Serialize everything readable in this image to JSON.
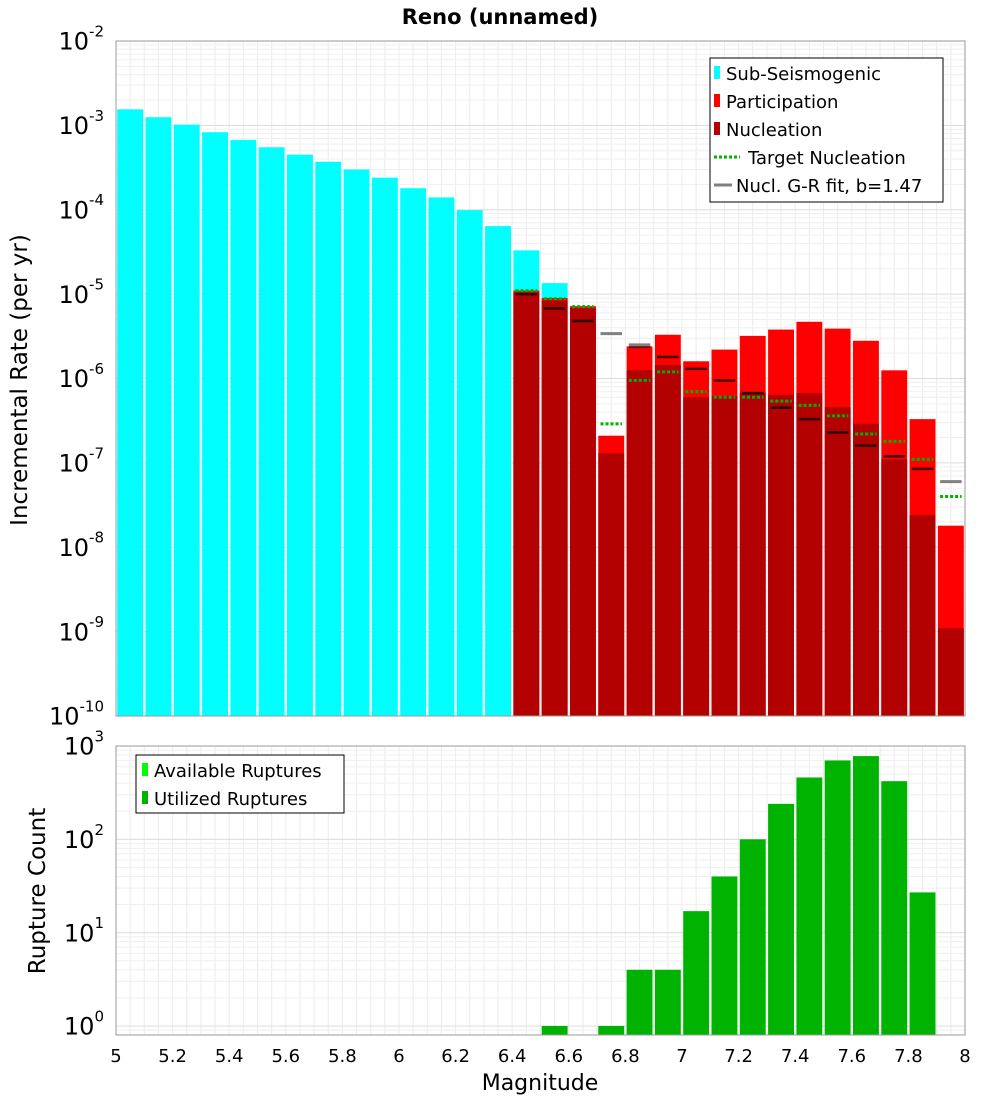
{
  "chart_data": [
    {
      "type": "bar",
      "title": "Reno (unnamed)",
      "xlabel": "",
      "ylabel": "Incremental Rate (per yr)",
      "yscale": "log",
      "xlim": [
        5,
        8
      ],
      "ylim": [
        1e-10,
        0.01
      ],
      "y_ticks": [
        {
          "base": "10",
          "exp": "-10",
          "value": 1e-10
        },
        {
          "base": "10",
          "exp": "-9",
          "value": 1e-09
        },
        {
          "base": "10",
          "exp": "-8",
          "value": 1e-08
        },
        {
          "base": "10",
          "exp": "-7",
          "value": 1e-07
        },
        {
          "base": "10",
          "exp": "-6",
          "value": 1e-06
        },
        {
          "base": "10",
          "exp": "-5",
          "value": 1e-05
        },
        {
          "base": "10",
          "exp": "-4",
          "value": 0.0001
        },
        {
          "base": "10",
          "exp": "-3",
          "value": 0.001
        },
        {
          "base": "10",
          "exp": "-2",
          "value": 0.01
        }
      ],
      "bin_width": 0.1,
      "legend": [
        {
          "label": "Sub-Seismogenic",
          "color": "#00ffff",
          "style": "box"
        },
        {
          "label": "Participation",
          "color": "#ff0000",
          "style": "box"
        },
        {
          "label": "Nucleation",
          "color": "#b30000",
          "style": "box"
        },
        {
          "label": "Target Nucleation",
          "color": "#00b300",
          "style": "dotted"
        },
        {
          "label": "Nucl. G-R fit, b=1.47",
          "color": "#808080",
          "style": "line"
        }
      ],
      "legend_position": "top-right",
      "series": [
        {
          "name": "Sub-Seismogenic",
          "color": "#00ffff",
          "x": [
            5.05,
            5.15,
            5.25,
            5.35,
            5.45,
            5.55,
            5.65,
            5.75,
            5.85,
            5.95,
            6.05,
            6.15,
            6.25,
            6.35,
            6.45,
            6.55
          ],
          "values": [
            0.00155,
            0.00125,
            0.00102,
            0.00083,
            0.00067,
            0.00055,
            0.00045,
            0.00037,
            0.0003,
            0.00024,
            0.00018,
            0.00014,
            9.9e-05,
            6.4e-05,
            3.3e-05,
            1.35e-05
          ]
        },
        {
          "name": "Participation",
          "color": "#ff0000",
          "x": [
            6.45,
            6.55,
            6.65,
            6.75,
            6.85,
            6.95,
            7.05,
            7.15,
            7.25,
            7.35,
            7.45,
            7.55,
            7.65,
            7.75,
            7.85,
            7.95
          ],
          "values": [
            1.1e-05,
            9e-06,
            7.2e-06,
            2.1e-07,
            2.4e-06,
            3.3e-06,
            1.6e-06,
            2.2e-06,
            3.2e-06,
            3.8e-06,
            4.7e-06,
            3.9e-06,
            2.8e-06,
            1.25e-06,
            3.3e-07,
            1.8e-08
          ]
        },
        {
          "name": "Nucleation",
          "color": "#b30000",
          "x": [
            6.45,
            6.55,
            6.65,
            6.75,
            6.85,
            6.95,
            7.05,
            7.15,
            7.25,
            7.35,
            7.45,
            7.55,
            7.65,
            7.75,
            7.85,
            7.95
          ],
          "values": [
            1.05e-05,
            8.4e-06,
            6.8e-06,
            1.3e-07,
            1.25e-06,
            1.45e-06,
            6e-07,
            6.2e-07,
            6.8e-07,
            6.4e-07,
            6.7e-07,
            4.6e-07,
            2.9e-07,
            1.1e-07,
            2.4e-08,
            1.1e-09
          ]
        },
        {
          "name": "Target Nucleation",
          "color": "#00b300",
          "x": [
            6.45,
            6.55,
            6.65,
            6.75,
            6.85,
            6.95,
            7.05,
            7.15,
            7.25,
            7.35,
            7.45,
            7.55,
            7.65,
            7.75,
            7.85,
            7.95
          ],
          "values": [
            1.1e-05,
            8.8e-06,
            7.1e-06,
            2.9e-07,
            9.5e-07,
            1.2e-06,
            7e-07,
            6e-07,
            6e-07,
            5.4e-07,
            4.8e-07,
            3.6e-07,
            2.2e-07,
            1.8e-07,
            1.1e-07,
            4e-08
          ]
        },
        {
          "name": "Nucl. G-R fit, b=1.47",
          "color": "#808080",
          "x": [
            6.75,
            6.85,
            7.95
          ],
          "values": [
            3.4e-06,
            2.5e-06,
            6e-08
          ]
        },
        {
          "name": "Nucleation markers",
          "color": "#000000",
          "x": [
            6.45,
            6.55,
            6.65,
            6.85,
            6.95,
            7.05,
            7.15,
            7.25,
            7.35,
            7.45,
            7.55,
            7.65,
            7.75,
            7.85
          ],
          "values": [
            1e-05,
            6.8e-06,
            4.8e-06,
            2.4e-06,
            1.8e-06,
            1.3e-06,
            9.5e-07,
            6.7e-07,
            4.5e-07,
            3.3e-07,
            2.3e-07,
            1.6e-07,
            1.2e-07,
            8.5e-08
          ]
        }
      ]
    },
    {
      "type": "bar",
      "title": "",
      "xlabel": "Magnitude",
      "ylabel": "Rupture Count",
      "yscale": "log",
      "xlim": [
        5,
        8
      ],
      "ylim": [
        0.8,
        1000
      ],
      "x_ticks": [
        "5",
        "5.2",
        "5.4",
        "5.6",
        "5.8",
        "6",
        "6.2",
        "6.4",
        "6.6",
        "6.8",
        "7",
        "7.2",
        "7.4",
        "7.6",
        "7.8",
        "8"
      ],
      "y_ticks": [
        {
          "base": "10",
          "exp": "0",
          "value": 1
        },
        {
          "base": "10",
          "exp": "1",
          "value": 10
        },
        {
          "base": "10",
          "exp": "2",
          "value": 100
        },
        {
          "base": "10",
          "exp": "3",
          "value": 1000
        }
      ],
      "bin_width": 0.1,
      "legend": [
        {
          "label": "Available Ruptures",
          "color": "#00ff00",
          "style": "box"
        },
        {
          "label": "Utilized Ruptures",
          "color": "#00b300",
          "style": "box"
        }
      ],
      "legend_position": "top-left",
      "series": [
        {
          "name": "Utilized Ruptures",
          "color": "#00b300",
          "x": [
            6.55,
            6.75,
            6.85,
            6.95,
            7.05,
            7.15,
            7.25,
            7.35,
            7.45,
            7.55,
            7.65,
            7.75,
            7.85
          ],
          "values": [
            1,
            1,
            4,
            4,
            17,
            40,
            100,
            240,
            460,
            700,
            780,
            420,
            27
          ]
        }
      ]
    }
  ]
}
